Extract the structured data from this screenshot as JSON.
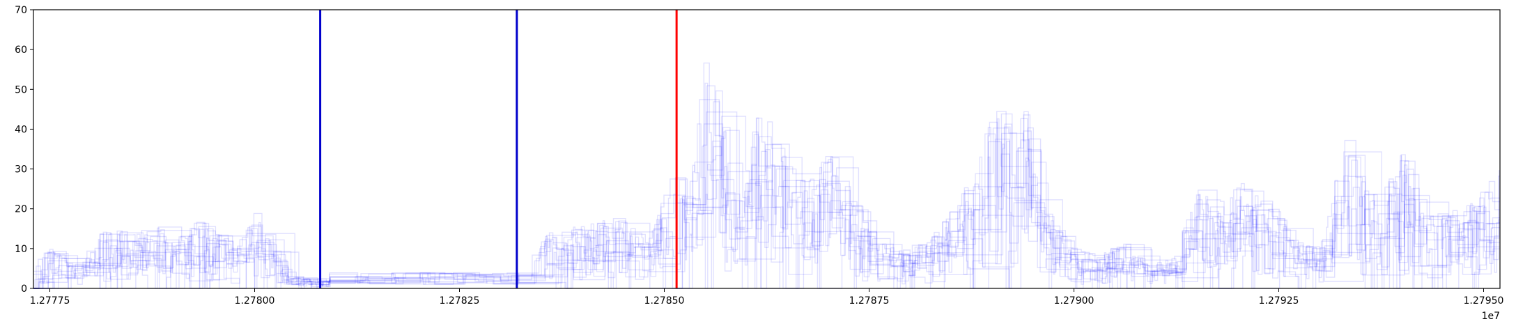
{
  "chart_data": {
    "type": "line",
    "title": "",
    "xlabel": "",
    "ylabel": "",
    "x_offset_label": "1e7",
    "xlim": [
      12777300,
      12795200
    ],
    "ylim": [
      0,
      70
    ],
    "x_ticks": [
      12777500,
      12780000,
      12782500,
      12785000,
      12787500,
      12790000,
      12792500,
      12795000
    ],
    "x_tick_labels": [
      "1.27775",
      "1.27800",
      "1.27825",
      "1.27850",
      "1.27875",
      "1.27900",
      "1.27925",
      "1.27950"
    ],
    "y_ticks": [
      0,
      10,
      20,
      30,
      40,
      50,
      60,
      70
    ],
    "y_tick_labels": [
      "0",
      "10",
      "20",
      "30",
      "40",
      "50",
      "60",
      "70"
    ],
    "grid": false,
    "legend": "none",
    "series_color": "#0000ff",
    "series_opacity": 0.12,
    "series_count": 15,
    "envelope": {
      "x": [
        12777300,
        12777500,
        12777800,
        12778000,
        12778200,
        12778500,
        12778800,
        12779000,
        12779300,
        12779500,
        12779800,
        12780000,
        12780400,
        12780800,
        12781500,
        12782500,
        12783200,
        12783600,
        12784000,
        12784400,
        12784800,
        12785100,
        12785300,
        12785500,
        12785700,
        12785900,
        12786100,
        12786300,
        12786500,
        12786800,
        12787000,
        12787300,
        12787600,
        12787900,
        12788200,
        12788500,
        12788800,
        12789000,
        12789200,
        12789400,
        12789600,
        12789800,
        12790000,
        12790300,
        12790600,
        12790900,
        12791200,
        12791500,
        12791800,
        12792100,
        12792400,
        12792700,
        12793000,
        12793300,
        12793600,
        12793800,
        12794000,
        12794300,
        12794600,
        12794900,
        12795200
      ],
      "y": [
        7,
        10,
        6,
        12,
        15,
        14,
        16,
        12,
        18,
        14,
        12,
        20,
        3,
        2,
        2,
        3,
        10,
        14,
        16,
        18,
        12,
        30,
        25,
        60,
        45,
        20,
        45,
        42,
        30,
        28,
        35,
        22,
        12,
        10,
        12,
        20,
        30,
        50,
        40,
        45,
        22,
        15,
        10,
        8,
        12,
        6,
        8,
        25,
        22,
        28,
        20,
        12,
        10,
        38,
        22,
        28,
        34,
        18,
        20,
        22,
        32
      ]
    },
    "vertical_lines": [
      {
        "x": 12780800,
        "color": "#0000cc"
      },
      {
        "x": 12783200,
        "color": "#0000cc"
      },
      {
        "x": 12785150,
        "color": "#ff0000"
      }
    ]
  }
}
